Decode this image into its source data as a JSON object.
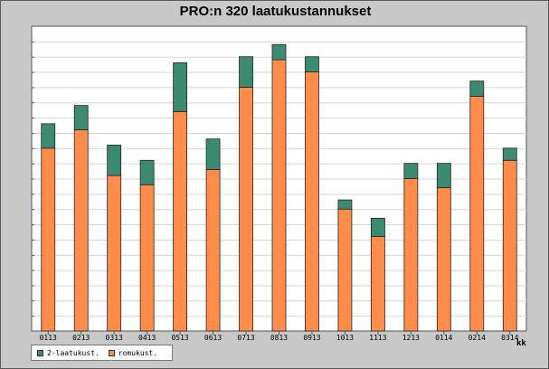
{
  "chart_data": {
    "type": "bar",
    "stacked": true,
    "title": "PRO:n  320 laatukustannukset",
    "xlabel": "kk",
    "ylabel": "",
    "categories": [
      "0113",
      "0213",
      "0313",
      "0413",
      "0513",
      "0613",
      "0713",
      "0813",
      "0913",
      "1013",
      "1113",
      "1213",
      "0114",
      "0214",
      "0314"
    ],
    "series": [
      {
        "name": "romukust.",
        "color": "#ff8c4a",
        "values": [
          60,
          66,
          51,
          48,
          72,
          53,
          80,
          89,
          85,
          40,
          31,
          50,
          47,
          77,
          56
        ]
      },
      {
        "name": "2-laatukust.",
        "color": "#3d8a72",
        "values": [
          8,
          8,
          10,
          8,
          16,
          10,
          10,
          5,
          5,
          3,
          6,
          5,
          8,
          5,
          4
        ]
      }
    ],
    "ylim": [
      0,
      100
    ],
    "grid": true,
    "legend_position": "bottom-left"
  }
}
